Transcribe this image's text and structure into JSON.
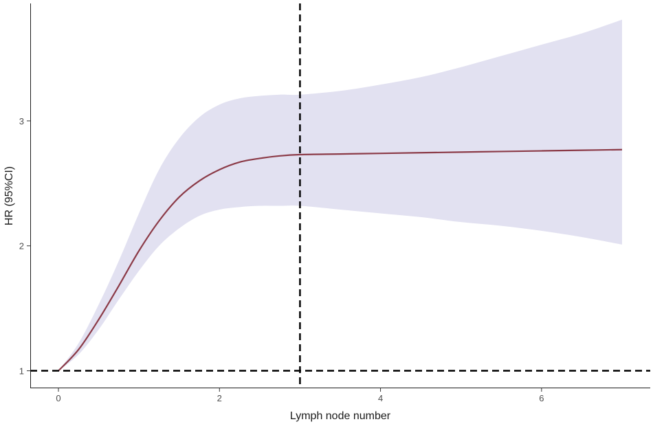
{
  "chart_data": {
    "type": "line",
    "xlabel": "Lymph node number",
    "ylabel": "HR (95%CI)",
    "xlim": [
      -0.35,
      7.35
    ],
    "ylim": [
      0.86,
      3.94
    ],
    "x_ticks": [
      0,
      2,
      4,
      6
    ],
    "y_ticks": [
      1,
      2,
      3
    ],
    "x_tick_labels": [
      "0",
      "2",
      "4",
      "6"
    ],
    "y_tick_labels": [
      "1",
      "2",
      "3"
    ],
    "grid": false,
    "reference_lines": [
      {
        "orientation": "horizontal",
        "value": 1,
        "style": "dashed"
      },
      {
        "orientation": "vertical",
        "value": 3,
        "style": "dashed"
      }
    ],
    "series": [
      {
        "x": [
          0,
          0.25,
          0.5,
          0.75,
          1.0,
          1.25,
          1.5,
          1.75,
          2.0,
          2.25,
          2.5,
          2.75,
          3.0,
          3.5,
          4.0,
          4.5,
          5.0,
          5.5,
          6.0,
          6.5,
          7.0
        ],
        "y": [
          1.0,
          1.17,
          1.41,
          1.68,
          1.96,
          2.2,
          2.39,
          2.52,
          2.61,
          2.67,
          2.7,
          2.72,
          2.73,
          2.735,
          2.74,
          2.745,
          2.75,
          2.755,
          2.76,
          2.765,
          2.77
        ],
        "lower": [
          1.0,
          1.13,
          1.33,
          1.57,
          1.8,
          2.0,
          2.14,
          2.24,
          2.29,
          2.31,
          2.32,
          2.32,
          2.32,
          2.29,
          2.26,
          2.23,
          2.19,
          2.16,
          2.12,
          2.07,
          2.01
        ],
        "upper": [
          1.0,
          1.22,
          1.53,
          1.88,
          2.26,
          2.61,
          2.86,
          3.03,
          3.13,
          3.18,
          3.2,
          3.21,
          3.21,
          3.24,
          3.29,
          3.35,
          3.43,
          3.52,
          3.61,
          3.7,
          3.81
        ],
        "line_color": "#8b3a47",
        "band_color": "#e2e1f1"
      }
    ]
  }
}
